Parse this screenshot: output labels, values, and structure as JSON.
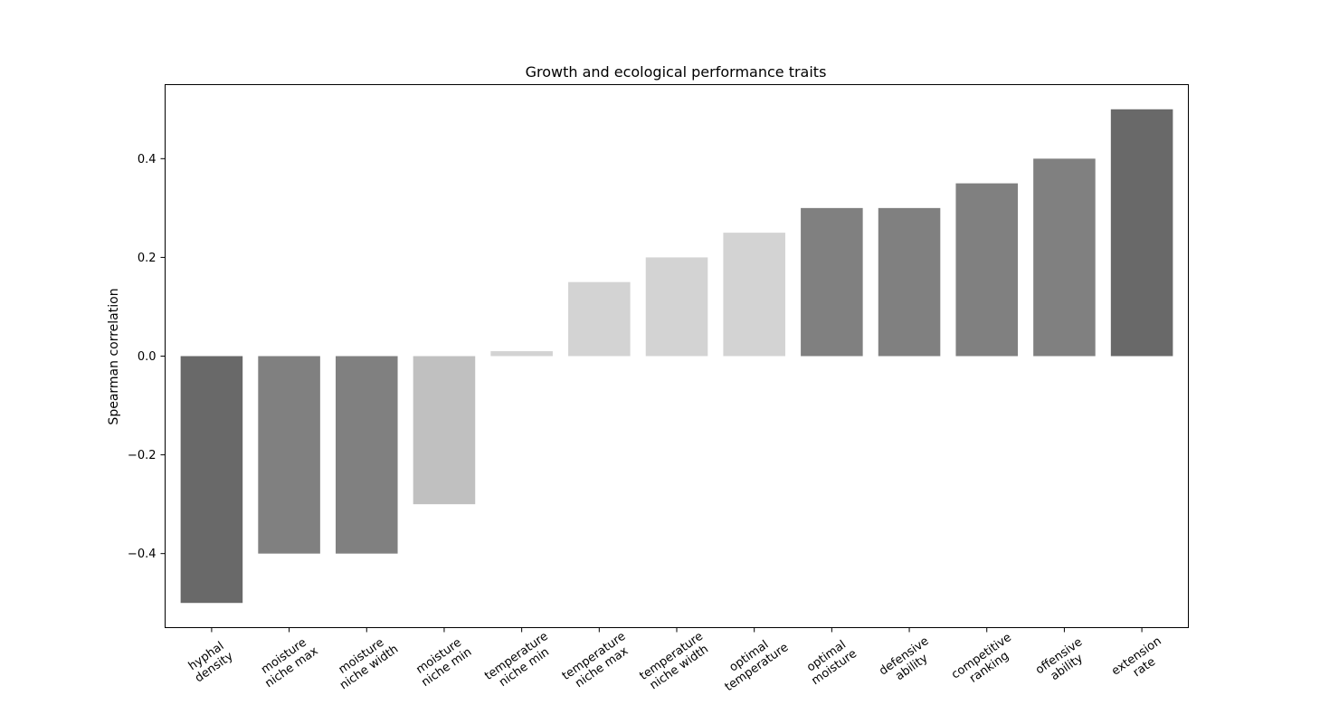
{
  "chart_data": {
    "type": "bar",
    "title": "Growth and ecological performance traits",
    "xlabel": "",
    "ylabel": "Spearman correlation",
    "ylim": [
      -0.55,
      0.55
    ],
    "yticks": [
      -0.4,
      -0.2,
      0.0,
      0.2,
      0.4
    ],
    "ytick_labels": [
      "−0.4",
      "−0.2",
      "0.0",
      "0.2",
      "0.4"
    ],
    "grid": false,
    "categories": [
      [
        "hyphal",
        "density"
      ],
      [
        "moisture",
        "niche max"
      ],
      [
        "moisture",
        "niche width"
      ],
      [
        "moisture",
        "niche min"
      ],
      [
        "temperature",
        "niche min"
      ],
      [
        "temperature",
        "niche max"
      ],
      [
        "temperature",
        "niche width"
      ],
      [
        "optimal",
        "temperature"
      ],
      [
        "optimal",
        "moisture"
      ],
      [
        "defensive",
        "ability"
      ],
      [
        "competitive",
        "ranking"
      ],
      [
        "offensive",
        "ability"
      ],
      [
        "extension",
        "rate"
      ]
    ],
    "values": [
      -0.5,
      -0.4,
      -0.4,
      -0.3,
      0.01,
      0.15,
      0.2,
      0.25,
      0.3,
      0.3,
      0.35,
      0.4,
      0.5
    ],
    "colors": [
      "#696969",
      "#808080",
      "#808080",
      "#c0c0c0",
      "#d3d3d3",
      "#d3d3d3",
      "#d3d3d3",
      "#d3d3d3",
      "#808080",
      "#808080",
      "#808080",
      "#808080",
      "#696969"
    ]
  }
}
